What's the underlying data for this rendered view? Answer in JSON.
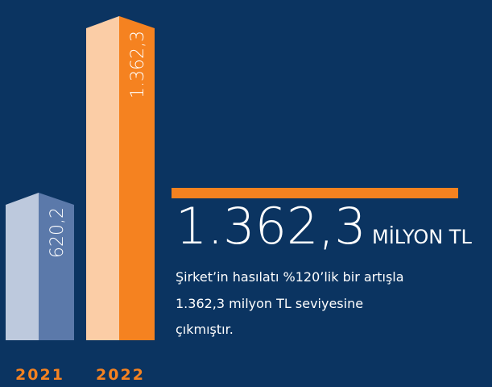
{
  "chart_data": {
    "type": "bar",
    "categories": [
      "2021",
      "2022"
    ],
    "values": [
      620.2,
      1362.3
    ],
    "value_labels": [
      "620,2",
      "1.362,3"
    ],
    "colors": [
      "#5b79aa",
      "#f58220"
    ]
  },
  "highlight": {
    "value": "1.362,3",
    "unit": "MİLYON TL",
    "description": [
      "Şirket’in hasılatı %120’lik bir artışla",
      "1.362,3 milyon TL seviyesine",
      "çıkmıştır."
    ]
  }
}
